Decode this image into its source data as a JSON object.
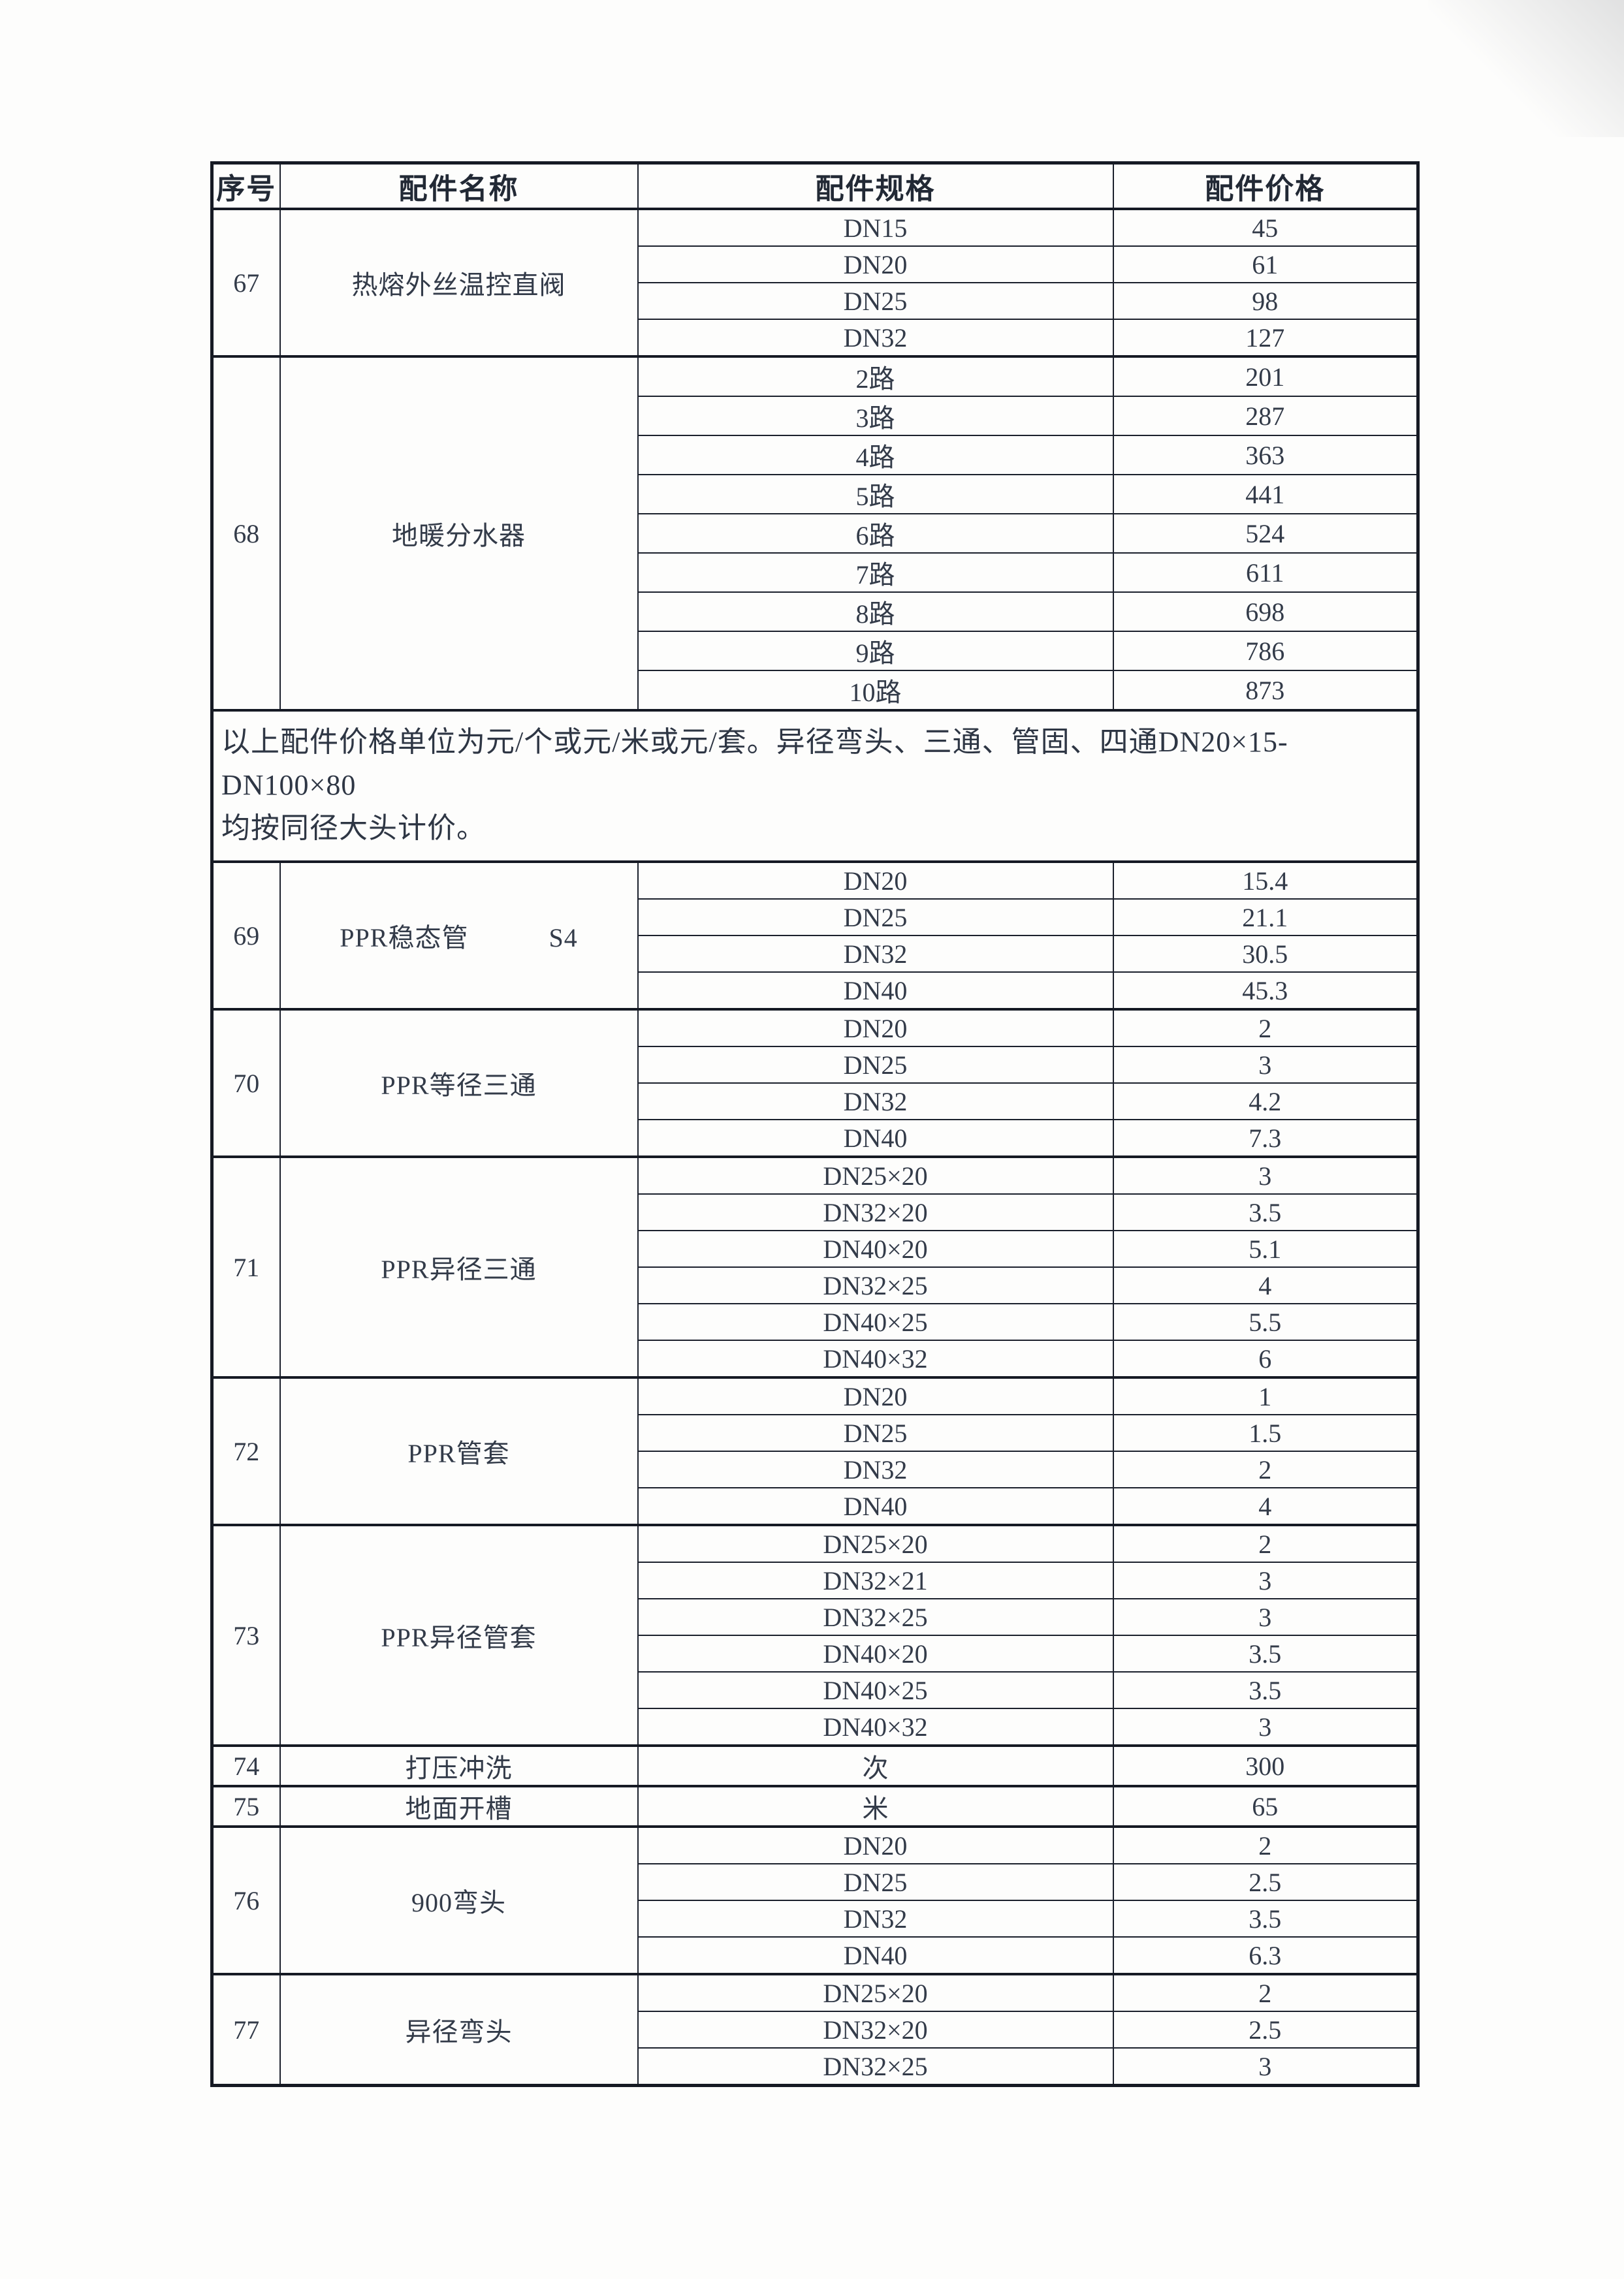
{
  "table": {
    "headers": [
      "序号",
      "配件名称",
      "配件规格",
      "配件价格"
    ],
    "items": [
      {
        "no": "67",
        "name": "热熔外丝温控直阀",
        "rows": [
          [
            "DN15",
            "45"
          ],
          [
            "DN20",
            "61"
          ],
          [
            "DN25",
            "98"
          ],
          [
            "DN32",
            "127"
          ]
        ]
      },
      {
        "no": "68",
        "name": "地暖分水器",
        "rows": [
          [
            "2路",
            "201"
          ],
          [
            "3路",
            "287"
          ],
          [
            "4路",
            "363"
          ],
          [
            "5路",
            "441"
          ],
          [
            "6路",
            "524"
          ],
          [
            "7路",
            "611"
          ],
          [
            "8路",
            "698"
          ],
          [
            "9路",
            "786"
          ],
          [
            "10路",
            "873"
          ]
        ]
      },
      {
        "note": "以上配件价格单位为元/个或元/米或元/套。异径弯头、三通、管固、四通DN20×15-DN100×80\n均按同径大头计价。"
      },
      {
        "no": "69",
        "name": "PPR稳态管　　　S4",
        "rows": [
          [
            "DN20",
            "15.4"
          ],
          [
            "DN25",
            "21.1"
          ],
          [
            "DN32",
            "30.5"
          ],
          [
            "DN40",
            "45.3"
          ]
        ]
      },
      {
        "no": "70",
        "name": "PPR等径三通",
        "rows": [
          [
            "DN20",
            "2"
          ],
          [
            "DN25",
            "3"
          ],
          [
            "DN32",
            "4.2"
          ],
          [
            "DN40",
            "7.3"
          ]
        ]
      },
      {
        "no": "71",
        "name": "PPR异径三通",
        "rows": [
          [
            "DN25×20",
            "3"
          ],
          [
            "DN32×20",
            "3.5"
          ],
          [
            "DN40×20",
            "5.1"
          ],
          [
            "DN32×25",
            "4"
          ],
          [
            "DN40×25",
            "5.5"
          ],
          [
            "DN40×32",
            "6"
          ]
        ]
      },
      {
        "no": "72",
        "name": "PPR管套",
        "rows": [
          [
            "DN20",
            "1"
          ],
          [
            "DN25",
            "1.5"
          ],
          [
            "DN32",
            "2"
          ],
          [
            "DN40",
            "4"
          ]
        ]
      },
      {
        "no": "73",
        "name": "PPR异径管套",
        "rows": [
          [
            "DN25×20",
            "2"
          ],
          [
            "DN32×21",
            "3"
          ],
          [
            "DN32×25",
            "3"
          ],
          [
            "DN40×20",
            "3.5"
          ],
          [
            "DN40×25",
            "3.5"
          ],
          [
            "DN40×32",
            "3"
          ]
        ]
      },
      {
        "no": "74",
        "name": "打压冲洗",
        "rows": [
          [
            "次",
            "300"
          ]
        ]
      },
      {
        "no": "75",
        "name": "地面开槽",
        "rows": [
          [
            "米",
            "65"
          ]
        ]
      },
      {
        "no": "76",
        "name": "900弯头",
        "rows": [
          [
            "DN20",
            "2"
          ],
          [
            "DN25",
            "2.5"
          ],
          [
            "DN32",
            "3.5"
          ],
          [
            "DN40",
            "6.3"
          ]
        ]
      },
      {
        "no": "77",
        "name": "异径弯头",
        "rows": [
          [
            "DN25×20",
            "2"
          ],
          [
            "DN32×20",
            "2.5"
          ],
          [
            "DN32×25",
            "3"
          ]
        ]
      }
    ]
  }
}
